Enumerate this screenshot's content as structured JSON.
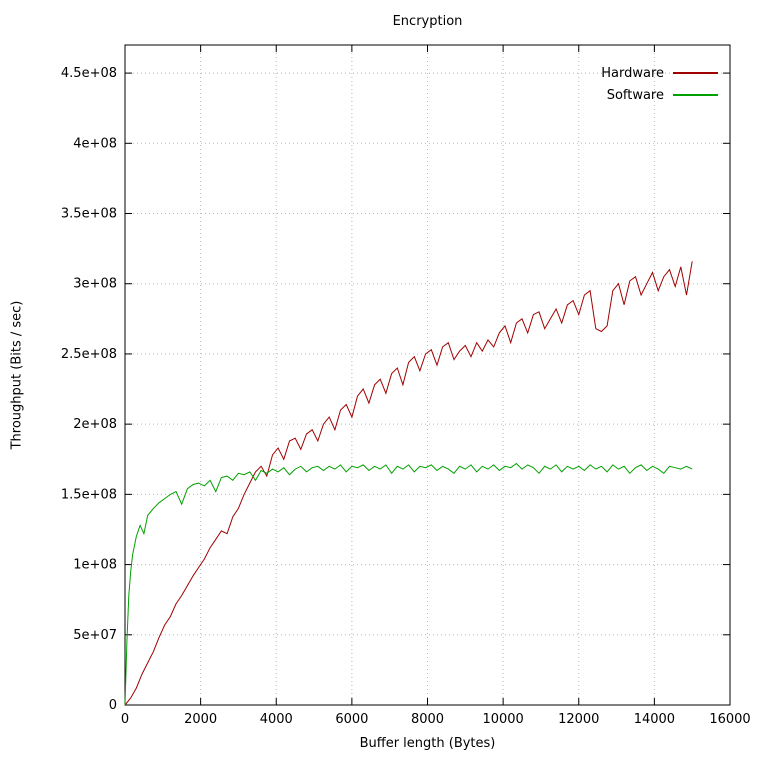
{
  "chart_data": {
    "type": "line",
    "title": "Encryption",
    "grid": true,
    "legend_position": "top-right-inside",
    "y_scale": 1000000,
    "x_axis": {
      "label": "Buffer length (Bytes)",
      "min": 0,
      "max": 16000,
      "ticks": [
        0,
        2000,
        4000,
        6000,
        8000,
        10000,
        12000,
        14000,
        16000
      ],
      "tick_labels": [
        "0",
        "2000",
        "4000",
        "6000",
        "8000",
        "10000",
        "12000",
        "14000",
        "16000"
      ]
    },
    "y_axis": {
      "label": "Throughput (Bits / sec)",
      "min": 0,
      "max": 470000000,
      "ticks": [
        0,
        50000000,
        100000000,
        150000000,
        200000000,
        250000000,
        300000000,
        350000000,
        400000000,
        450000000
      ],
      "tick_labels": [
        "0",
        "5e+07",
        "1e+08",
        "1.5e+08",
        "2e+08",
        "2.5e+08",
        "3e+08",
        "3.5e+08",
        "4e+08",
        "4.5e+08"
      ]
    },
    "series": [
      {
        "name": "Hardware",
        "color": "#a00000",
        "x": [
          0,
          150,
          300,
          450,
          600,
          750,
          900,
          1050,
          1200,
          1350,
          1500,
          1650,
          1800,
          1950,
          2100,
          2250,
          2400,
          2550,
          2700,
          2850,
          3000,
          3150,
          3300,
          3450,
          3600,
          3750,
          3900,
          4050,
          4200,
          4350,
          4500,
          4650,
          4800,
          4950,
          5100,
          5250,
          5400,
          5550,
          5700,
          5850,
          6000,
          6150,
          6300,
          6450,
          6600,
          6750,
          6900,
          7050,
          7200,
          7350,
          7500,
          7650,
          7800,
          7950,
          8100,
          8250,
          8400,
          8550,
          8700,
          8850,
          9000,
          9150,
          9300,
          9450,
          9600,
          9750,
          9900,
          10050,
          10200,
          10350,
          10500,
          10650,
          10800,
          10950,
          11100,
          11250,
          11400,
          11550,
          11700,
          11850,
          12000,
          12150,
          12300,
          12450,
          12600,
          12750,
          12900,
          13050,
          13200,
          13350,
          13500,
          13650,
          13800,
          13950,
          14100,
          14250,
          14400,
          14550,
          14700,
          14850,
          15000
        ],
        "y": [
          0,
          5,
          12,
          22,
          30,
          38,
          48,
          57,
          63,
          72,
          78,
          85,
          92,
          98,
          104,
          112,
          118,
          124,
          122,
          134,
          140,
          150,
          158,
          166,
          170,
          163,
          178,
          183,
          175,
          188,
          190,
          182,
          193,
          196,
          188,
          200,
          205,
          196,
          210,
          214,
          205,
          220,
          225,
          215,
          228,
          232,
          222,
          236,
          240,
          228,
          244,
          248,
          238,
          250,
          253,
          242,
          255,
          258,
          246,
          252,
          256,
          248,
          258,
          252,
          260,
          255,
          265,
          270,
          258,
          272,
          275,
          265,
          278,
          280,
          268,
          275,
          282,
          272,
          285,
          288,
          278,
          292,
          295,
          268,
          266,
          270,
          295,
          300,
          285,
          302,
          305,
          292,
          300,
          308,
          295,
          305,
          310,
          298,
          312,
          292,
          316
        ]
      },
      {
        "name": "Software",
        "color": "#00a000",
        "x": [
          0,
          50,
          100,
          150,
          200,
          300,
          400,
          500,
          600,
          750,
          900,
          1050,
          1200,
          1350,
          1500,
          1650,
          1800,
          1950,
          2100,
          2250,
          2400,
          2550,
          2700,
          2850,
          3000,
          3150,
          3300,
          3450,
          3600,
          3750,
          3900,
          4050,
          4200,
          4350,
          4500,
          4650,
          4800,
          4950,
          5100,
          5250,
          5400,
          5550,
          5700,
          5850,
          6000,
          6150,
          6300,
          6450,
          6600,
          6750,
          6900,
          7050,
          7200,
          7350,
          7500,
          7650,
          7800,
          7950,
          8100,
          8250,
          8400,
          8550,
          8700,
          8850,
          9000,
          9150,
          9300,
          9450,
          9600,
          9750,
          9900,
          10050,
          10200,
          10350,
          10500,
          10650,
          10800,
          10950,
          11100,
          11250,
          11400,
          11550,
          11700,
          11850,
          12000,
          12150,
          12300,
          12450,
          12600,
          12750,
          12900,
          13050,
          13200,
          13350,
          13500,
          13650,
          13800,
          13950,
          14100,
          14250,
          14400,
          14550,
          14700,
          14850,
          15000
        ],
        "y": [
          0,
          45,
          78,
          95,
          107,
          120,
          128,
          122,
          135,
          140,
          144,
          147,
          150,
          152,
          143,
          154,
          157,
          158,
          156,
          160,
          152,
          162,
          163,
          160,
          165,
          164,
          166,
          160,
          167,
          165,
          168,
          166,
          169,
          164,
          168,
          170,
          166,
          169,
          170,
          167,
          170,
          168,
          171,
          166,
          170,
          169,
          171,
          167,
          170,
          168,
          171,
          165,
          170,
          168,
          171,
          166,
          170,
          169,
          171,
          167,
          170,
          168,
          165,
          170,
          168,
          171,
          166,
          170,
          168,
          171,
          167,
          170,
          169,
          172,
          168,
          171,
          169,
          165,
          170,
          168,
          171,
          166,
          170,
          168,
          170,
          167,
          171,
          168,
          170,
          166,
          171,
          168,
          170,
          165,
          169,
          171,
          167,
          170,
          168,
          165,
          170,
          169,
          168,
          170,
          168
        ]
      }
    ]
  }
}
